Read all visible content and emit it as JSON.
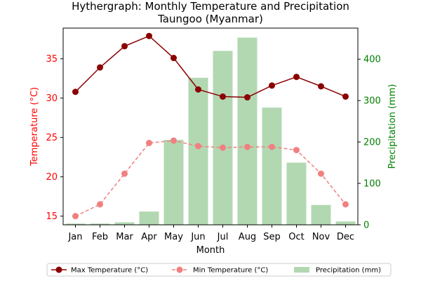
{
  "chart_data": {
    "type": "bar+line",
    "title": [
      "Hythergraph: Monthly Temperature and Precipitation",
      "Taungoo (Myanmar)"
    ],
    "xlabel": "Month",
    "ylabel_left": "Temperature (°C)",
    "ylabel_right": "Precipitation (mm)",
    "categories": [
      "Jan",
      "Feb",
      "Mar",
      "Apr",
      "May",
      "Jun",
      "Jul",
      "Aug",
      "Sep",
      "Oct",
      "Nov",
      "Dec"
    ],
    "ylim_left": [
      13.9,
      38.9
    ],
    "yticks_left": [
      15,
      20,
      25,
      30,
      35
    ],
    "ylim_right": [
      0,
      475
    ],
    "yticks_right": [
      0,
      100,
      200,
      300,
      400
    ],
    "grid": false,
    "legend_position": "bottom",
    "series": [
      {
        "name": "Max Temperature (°C)",
        "kind": "line",
        "axis": "left",
        "color": "#8b0000",
        "dash": "solid",
        "values": [
          30.8,
          33.9,
          36.6,
          37.9,
          35.1,
          31.1,
          30.2,
          30.1,
          31.6,
          32.7,
          31.5,
          30.2
        ]
      },
      {
        "name": "Min Temperature (°C)",
        "kind": "line",
        "axis": "left",
        "color": "#f08080",
        "dash": "dashed",
        "values": [
          15.0,
          16.5,
          20.4,
          24.3,
          24.6,
          23.9,
          23.7,
          23.8,
          23.8,
          23.4,
          20.4,
          16.5
        ]
      },
      {
        "name": "Precipitation (mm)",
        "kind": "bar",
        "axis": "right",
        "color": "#b2d8b2",
        "values": [
          3,
          3,
          6,
          32,
          205,
          355,
          420,
          452,
          283,
          150,
          48,
          8
        ]
      }
    ],
    "colors": {
      "left_axis": "#ff0000",
      "right_axis": "#008000"
    }
  }
}
